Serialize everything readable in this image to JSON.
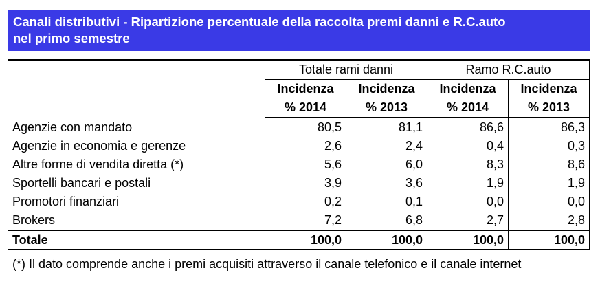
{
  "title": {
    "line1": "Canali distributivi - Ripartizione percentuale della raccolta premi danni e R.C.auto",
    "line2": "nel primo semestre"
  },
  "header": {
    "group1": "Totale rami danni",
    "group2": "Ramo R.C.auto",
    "sub": [
      {
        "line1": "Incidenza",
        "line2": "% 2014"
      },
      {
        "line1": "Incidenza",
        "line2": "% 2013"
      },
      {
        "line1": "Incidenza",
        "line2": "% 2014"
      },
      {
        "line1": "Incidenza",
        "line2": "% 2013"
      }
    ]
  },
  "rows": [
    {
      "label": "Agenzie con mandato",
      "values": [
        "80,5",
        "81,1",
        "86,6",
        "86,3"
      ]
    },
    {
      "label": "Agenzie in economia e gerenze",
      "values": [
        "2,6",
        "2,4",
        "0,4",
        "0,3"
      ]
    },
    {
      "label": "Altre forme di vendita diretta (*)",
      "values": [
        "5,6",
        "6,0",
        "8,3",
        "8,6"
      ]
    },
    {
      "label": "Sportelli bancari e postali",
      "values": [
        "3,9",
        "3,6",
        "1,9",
        "1,9"
      ]
    },
    {
      "label": "Promotori finanziari",
      "values": [
        "0,2",
        "0,1",
        "0,0",
        "0,0"
      ]
    },
    {
      "label": "Brokers",
      "values": [
        "7,2",
        "6,8",
        "2,7",
        "2,8"
      ]
    }
  ],
  "total": {
    "label": "Totale",
    "values": [
      "100,0",
      "100,0",
      "100,0",
      "100,0"
    ]
  },
  "footnote": "(*) Il dato comprende anche i premi acquisiti attraverso il canale telefonico e il canale internet",
  "colors": {
    "title_bg": "#3a3ae6",
    "title_text": "#ffffff"
  }
}
